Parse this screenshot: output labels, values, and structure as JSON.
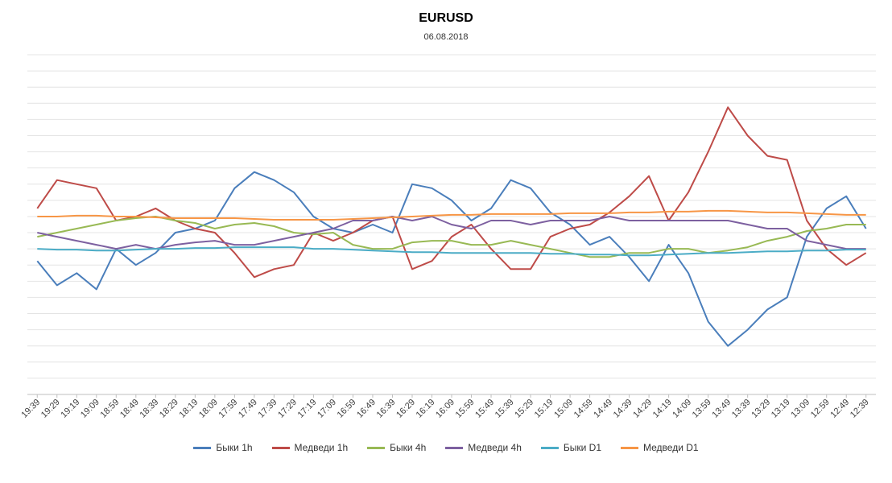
{
  "chart_data": {
    "type": "line",
    "title": "EURUSD",
    "subtitle": "06.08.2018",
    "xlabel": "",
    "ylabel": "",
    "grid": true,
    "legend_position": "bottom",
    "x": [
      "19:39",
      "19:29",
      "19:19",
      "19:09",
      "18:59",
      "18:49",
      "18:39",
      "18:29",
      "18:19",
      "18:09",
      "17:59",
      "17:49",
      "17:39",
      "17:29",
      "17:19",
      "17:09",
      "16:59",
      "16:49",
      "16:39",
      "16:29",
      "16:19",
      "16:09",
      "15:59",
      "15:49",
      "15:39",
      "15:29",
      "15:19",
      "15:09",
      "14:59",
      "14:49",
      "14:39",
      "14:29",
      "14:19",
      "14:09",
      "13:59",
      "13:49",
      "13:39",
      "13:29",
      "13:19",
      "13:09",
      "12:59",
      "12:49",
      "12:39"
    ],
    "ylim": [
      -2.1,
      2.1
    ],
    "series": [
      {
        "name": "Быки 1h",
        "color": "#4a7ebb",
        "values": [
          -0.45,
          -0.75,
          -0.6,
          -0.8,
          -0.3,
          -0.5,
          -0.35,
          -0.1,
          -0.05,
          0.05,
          0.45,
          0.65,
          0.55,
          0.4,
          0.1,
          -0.05,
          -0.1,
          0.0,
          -0.1,
          0.5,
          0.45,
          0.3,
          0.05,
          0.2,
          0.55,
          0.45,
          0.15,
          0.0,
          -0.25,
          -0.15,
          -0.4,
          -0.7,
          -0.25,
          -0.6,
          -1.2,
          -1.5,
          -1.3,
          -1.05,
          -0.9,
          -0.15,
          0.2,
          0.35,
          -0.05
        ]
      },
      {
        "name": "Медведи 1h",
        "color": "#be4b48",
        "values": [
          0.2,
          0.55,
          0.5,
          0.45,
          0.05,
          0.1,
          0.2,
          0.05,
          -0.05,
          -0.1,
          -0.35,
          -0.65,
          -0.55,
          -0.5,
          -0.1,
          -0.2,
          -0.1,
          0.05,
          0.1,
          -0.55,
          -0.45,
          -0.15,
          0.0,
          -0.3,
          -0.55,
          -0.55,
          -0.15,
          -0.05,
          0.0,
          0.15,
          0.35,
          0.6,
          0.05,
          0.4,
          0.9,
          1.45,
          1.1,
          0.85,
          0.8,
          0.05,
          -0.3,
          -0.5,
          -0.35
        ]
      },
      {
        "name": "Быки 4h",
        "color": "#98b954",
        "values": [
          -0.15,
          -0.1,
          -0.05,
          0.0,
          0.05,
          0.08,
          0.1,
          0.05,
          0.02,
          -0.05,
          0.0,
          0.02,
          -0.02,
          -0.1,
          -0.12,
          -0.1,
          -0.25,
          -0.3,
          -0.3,
          -0.22,
          -0.2,
          -0.2,
          -0.25,
          -0.25,
          -0.2,
          -0.25,
          -0.3,
          -0.35,
          -0.4,
          -0.4,
          -0.35,
          -0.35,
          -0.3,
          -0.3,
          -0.35,
          -0.32,
          -0.28,
          -0.2,
          -0.15,
          -0.08,
          -0.05,
          0.0,
          0.0
        ]
      },
      {
        "name": "Медведи 4h",
        "color": "#7d60a0",
        "values": [
          -0.1,
          -0.15,
          -0.2,
          -0.25,
          -0.3,
          -0.25,
          -0.3,
          -0.25,
          -0.22,
          -0.2,
          -0.25,
          -0.25,
          -0.2,
          -0.15,
          -0.1,
          -0.05,
          0.05,
          0.05,
          0.1,
          0.05,
          0.1,
          0.0,
          -0.05,
          0.05,
          0.05,
          0.0,
          0.05,
          0.05,
          0.05,
          0.1,
          0.05,
          0.05,
          0.05,
          0.05,
          0.05,
          0.05,
          0.0,
          -0.05,
          -0.05,
          -0.2,
          -0.25,
          -0.3,
          -0.3
        ]
      },
      {
        "name": "Быки D1",
        "color": "#4bacc6",
        "values": [
          -0.3,
          -0.31,
          -0.31,
          -0.32,
          -0.32,
          -0.31,
          -0.3,
          -0.3,
          -0.29,
          -0.29,
          -0.28,
          -0.28,
          -0.28,
          -0.28,
          -0.3,
          -0.3,
          -0.31,
          -0.32,
          -0.33,
          -0.34,
          -0.34,
          -0.35,
          -0.35,
          -0.35,
          -0.35,
          -0.35,
          -0.36,
          -0.36,
          -0.37,
          -0.37,
          -0.38,
          -0.38,
          -0.37,
          -0.36,
          -0.35,
          -0.35,
          -0.34,
          -0.33,
          -0.33,
          -0.32,
          -0.32,
          -0.31,
          -0.31
        ]
      },
      {
        "name": "Медведи D1",
        "color": "#f79646",
        "values": [
          0.1,
          0.1,
          0.11,
          0.11,
          0.1,
          0.1,
          0.09,
          0.08,
          0.08,
          0.08,
          0.08,
          0.07,
          0.06,
          0.06,
          0.06,
          0.06,
          0.07,
          0.08,
          0.09,
          0.1,
          0.11,
          0.12,
          0.12,
          0.13,
          0.13,
          0.13,
          0.13,
          0.14,
          0.14,
          0.14,
          0.15,
          0.15,
          0.16,
          0.16,
          0.17,
          0.17,
          0.16,
          0.15,
          0.15,
          0.14,
          0.13,
          0.12,
          0.12
        ]
      }
    ]
  }
}
